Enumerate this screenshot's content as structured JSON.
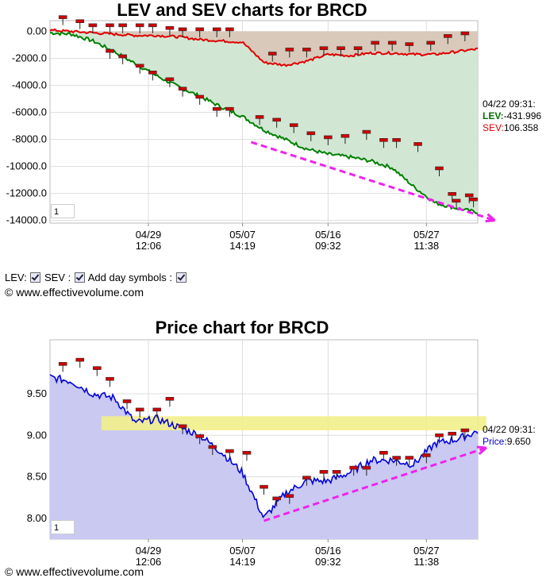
{
  "lev_chart": {
    "title": "LEV and SEV charts for BRCD",
    "y_ticks": [
      "0.00",
      "-2000.0",
      "-4000.0",
      "-6000.0",
      "-8000.0",
      "-10000.0",
      "-12000.0",
      "-14000.0"
    ],
    "x_ticks": [
      {
        "date": "04/29",
        "time": "12:06"
      },
      {
        "date": "05/07",
        "time": "14:19"
      },
      {
        "date": "05/16",
        "time": "09:32"
      },
      {
        "date": "05/27",
        "time": "11:38"
      }
    ],
    "readout": {
      "time": "04/22 09:31:",
      "lev_label": "LEV:",
      "lev_value": "-431.996",
      "sev_label": "SEV:",
      "sev_value": "106.358"
    },
    "page_box": "1"
  },
  "controls": {
    "lev_label": "LEV:",
    "sev_label": "SEV :",
    "day_label": "Add day symbols :"
  },
  "copyright": "© www.effectivevolume.com",
  "copyright_bottom": "© www.effectivevolume.com",
  "price_chart": {
    "title": "Price chart for BRCD",
    "y_ticks": [
      "9.50",
      "9.00",
      "8.50",
      "8.00"
    ],
    "x_ticks": [
      {
        "date": "04/29",
        "time": "12:06"
      },
      {
        "date": "05/07",
        "time": "14:19"
      },
      {
        "date": "05/16",
        "time": "09:32"
      },
      {
        "date": "05/27",
        "time": "11:38"
      }
    ],
    "readout": {
      "time": "04/22 09:31:",
      "price_label": "Price:",
      "price_value": "9.650"
    },
    "page_box": "1"
  },
  "colors": {
    "lev": "#008000",
    "sev": "#e00000",
    "lev_fill": "#cfe6d2",
    "sev_fill": "#d8c7b8",
    "price": "#0000dd",
    "price_fill": "#c9c9f2",
    "band": "#f2f08a",
    "arrow": "#ee22ee",
    "marker": "#cc0000"
  },
  "chart_data": [
    {
      "type": "line",
      "title": "LEV and SEV charts for BRCD",
      "ylim": [
        -14200,
        800
      ],
      "y_ticks": [
        0,
        -2000,
        -4000,
        -6000,
        -8000,
        -10000,
        -12000,
        -14000
      ],
      "x_tick_positions": [
        0.23,
        0.45,
        0.65,
        0.88
      ],
      "x": [
        0.0,
        0.05,
        0.1,
        0.15,
        0.2,
        0.25,
        0.3,
        0.35,
        0.4,
        0.45,
        0.5,
        0.55,
        0.6,
        0.65,
        0.7,
        0.75,
        0.8,
        0.85,
        0.9,
        0.95,
        1.0
      ],
      "series": [
        {
          "name": "LEV",
          "values": [
            -100,
            -200,
            -700,
            -1500,
            -2400,
            -3300,
            -4100,
            -4800,
            -5600,
            -6300,
            -7300,
            -8000,
            -8700,
            -9100,
            -9300,
            -9600,
            -10100,
            -11500,
            -12700,
            -13100,
            -13400
          ]
        },
        {
          "name": "SEV",
          "values": [
            100,
            0,
            -100,
            -200,
            -300,
            -300,
            -400,
            -600,
            -700,
            -800,
            -2300,
            -2500,
            -2200,
            -1700,
            -1800,
            -1600,
            -1600,
            -1700,
            -1700,
            -1500,
            -1300
          ]
        }
      ],
      "day_markers": [
        {
          "x": 0.03,
          "y": 1000
        },
        {
          "x": 0.07,
          "y": 700
        },
        {
          "x": 0.1,
          "y": 400
        },
        {
          "x": 0.14,
          "y": 400
        },
        {
          "x": 0.17,
          "y": 400
        },
        {
          "x": 0.21,
          "y": 400
        },
        {
          "x": 0.24,
          "y": 400
        },
        {
          "x": 0.28,
          "y": 200
        },
        {
          "x": 0.31,
          "y": 100
        },
        {
          "x": 0.35,
          "y": 100
        },
        {
          "x": 0.39,
          "y": 100
        },
        {
          "x": 0.42,
          "y": 100
        },
        {
          "x": 0.14,
          "y": -1500
        },
        {
          "x": 0.17,
          "y": -1900
        },
        {
          "x": 0.21,
          "y": -2600
        },
        {
          "x": 0.24,
          "y": -3100
        },
        {
          "x": 0.28,
          "y": -3600
        },
        {
          "x": 0.31,
          "y": -4300
        },
        {
          "x": 0.35,
          "y": -4900
        },
        {
          "x": 0.39,
          "y": -5800
        },
        {
          "x": 0.42,
          "y": -5800
        },
        {
          "x": 0.49,
          "y": -6400
        },
        {
          "x": 0.52,
          "y": -1700
        },
        {
          "x": 0.53,
          "y": -6600
        },
        {
          "x": 0.56,
          "y": -1400
        },
        {
          "x": 0.57,
          "y": -7000
        },
        {
          "x": 0.6,
          "y": -1400
        },
        {
          "x": 0.61,
          "y": -7600
        },
        {
          "x": 0.64,
          "y": -1300
        },
        {
          "x": 0.65,
          "y": -7900
        },
        {
          "x": 0.68,
          "y": -1300
        },
        {
          "x": 0.69,
          "y": -7800
        },
        {
          "x": 0.72,
          "y": -1300
        },
        {
          "x": 0.74,
          "y": -7500
        },
        {
          "x": 0.76,
          "y": -900
        },
        {
          "x": 0.78,
          "y": -8100
        },
        {
          "x": 0.8,
          "y": -900
        },
        {
          "x": 0.81,
          "y": -8100
        },
        {
          "x": 0.84,
          "y": -1000
        },
        {
          "x": 0.86,
          "y": -8400
        },
        {
          "x": 0.89,
          "y": -900
        },
        {
          "x": 0.91,
          "y": -10200
        },
        {
          "x": 0.93,
          "y": -400
        },
        {
          "x": 0.94,
          "y": -12100
        },
        {
          "x": 0.97,
          "y": -200
        },
        {
          "x": 0.98,
          "y": -12200
        },
        {
          "x": 0.95,
          "y": -12600
        },
        {
          "x": 0.99,
          "y": -12500
        }
      ],
      "trend_arrow": {
        "x": [
          0.47,
          1.04
        ],
        "y": [
          -8200,
          -14000
        ]
      },
      "readout": {
        "time": "04/22 09:31",
        "LEV": -431.996,
        "SEV": 106.358
      }
    },
    {
      "type": "line",
      "title": "Price chart for BRCD",
      "ylim": [
        7.75,
        10.15
      ],
      "y_ticks": [
        9.5,
        9.0,
        8.5,
        8.0
      ],
      "x_tick_positions": [
        0.23,
        0.45,
        0.65,
        0.88
      ],
      "x": [
        0.0,
        0.05,
        0.1,
        0.15,
        0.2,
        0.25,
        0.3,
        0.35,
        0.4,
        0.45,
        0.5,
        0.55,
        0.6,
        0.65,
        0.7,
        0.75,
        0.8,
        0.85,
        0.9,
        0.95,
        1.0
      ],
      "series": [
        {
          "name": "Price",
          "values": [
            9.7,
            9.65,
            9.5,
            9.45,
            9.15,
            9.2,
            9.1,
            9.0,
            8.8,
            8.55,
            8.0,
            8.3,
            8.45,
            8.45,
            8.55,
            8.7,
            8.7,
            8.65,
            8.9,
            8.95,
            9.05
          ]
        }
      ],
      "day_markers": [
        {
          "x": 0.03,
          "y": 9.85
        },
        {
          "x": 0.07,
          "y": 9.9
        },
        {
          "x": 0.11,
          "y": 9.8
        },
        {
          "x": 0.14,
          "y": 9.67
        },
        {
          "x": 0.18,
          "y": 9.4
        },
        {
          "x": 0.21,
          "y": 9.3
        },
        {
          "x": 0.25,
          "y": 9.3
        },
        {
          "x": 0.28,
          "y": 9.43
        },
        {
          "x": 0.31,
          "y": 9.1
        },
        {
          "x": 0.35,
          "y": 8.98
        },
        {
          "x": 0.38,
          "y": 8.85
        },
        {
          "x": 0.42,
          "y": 8.8
        },
        {
          "x": 0.46,
          "y": 8.78
        },
        {
          "x": 0.5,
          "y": 8.37
        },
        {
          "x": 0.53,
          "y": 8.23
        },
        {
          "x": 0.56,
          "y": 8.26
        },
        {
          "x": 0.6,
          "y": 8.48
        },
        {
          "x": 0.64,
          "y": 8.55
        },
        {
          "x": 0.67,
          "y": 8.55
        },
        {
          "x": 0.71,
          "y": 8.6
        },
        {
          "x": 0.74,
          "y": 8.6
        },
        {
          "x": 0.78,
          "y": 8.78
        },
        {
          "x": 0.81,
          "y": 8.72
        },
        {
          "x": 0.84,
          "y": 8.72
        },
        {
          "x": 0.88,
          "y": 8.75
        },
        {
          "x": 0.91,
          "y": 8.99
        },
        {
          "x": 0.94,
          "y": 9.01
        },
        {
          "x": 0.97,
          "y": 9.05
        }
      ],
      "resistance_band": [
        9.06,
        9.23
      ],
      "trend_arrow": {
        "x": [
          0.5,
          1.02
        ],
        "y": [
          7.97,
          8.85
        ]
      },
      "readout": {
        "time": "04/22 09:31",
        "Price": 9.65
      }
    }
  ]
}
